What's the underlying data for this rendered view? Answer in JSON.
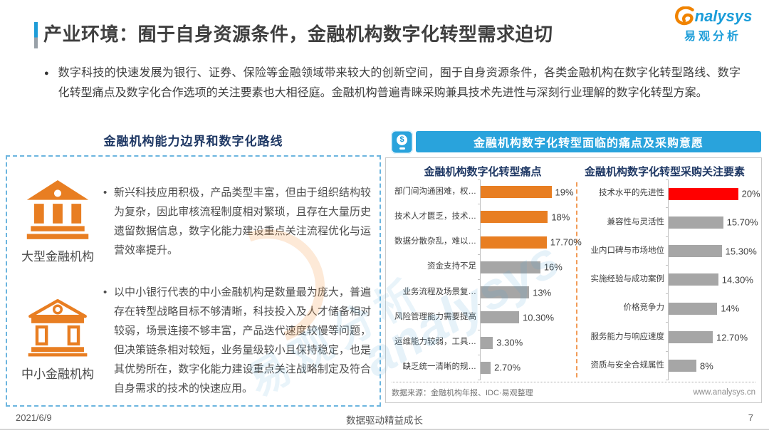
{
  "header": {
    "title": "产业环境：囿于自身资源条件，金融机构数字化转型需求迫切",
    "logo": {
      "brand_suffix": "nalysys",
      "brand_cn": "易观分析"
    }
  },
  "intro": {
    "bullet": "●",
    "text": "数字科技的快速发展为银行、证券、保险等金融领域带来较大的创新空间，囿于自身资源条件，各类金融机构在数字化转型路线、数字化转型痛点及数字化合作选项的关注要素也大相径庭。金融机构普遍青睐采购兼具技术先进性与深刻行业理解的数字化转型方案。",
    "text_color": "#404040"
  },
  "left_panel": {
    "title": "金融机构能力边界和数字化路线",
    "rows": [
      {
        "icon": "bank-large-icon",
        "label": "大型金融机构",
        "text": "新兴科技应用积极，产品类型丰富，但由于组织结构较为复杂，因此审核流程制度相对繁琐，且存在大量历史遗留数据信息，数字化能力建设重点关注流程优化与运营效率提升。"
      },
      {
        "icon": "bank-small-icon",
        "label": "中小金融机构",
        "text": "以中小银行代表的中小金融机构是数量最为庞大，普遍存在转型战略目标不够清晰，科技投入及人才储备相对较弱，场景连接不够丰富，产品迭代速度较慢等问题，但决策链条相对较短，业务量级较小且保持稳定，也是其优势所在，数字化能力建设重点关注战略制定及符合自身需求的技术的快速应用。"
      }
    ]
  },
  "right_panel": {
    "banner": "金融机构数字化转型面临的痛点及采购意愿",
    "banner_icon_symbol": "$",
    "source": "数据来源：金融机构年报、IDC·易观整理",
    "website": "www.analysys.cn"
  },
  "chart_data": [
    {
      "type": "bar",
      "orientation": "horizontal",
      "title": "金融机构数字化转型痛点",
      "categories": [
        "部门间沟通困难，权…",
        "技术人才匮乏，技术…",
        "数据分散杂乱，难以…",
        "资金支持不足",
        "业务流程及场景复…",
        "风险管理能力需要提高",
        "运维能力较弱，工具…",
        "缺乏统一清晰的规…"
      ],
      "values": [
        19,
        18,
        17.7,
        16,
        13,
        10.3,
        3.3,
        2.7
      ],
      "value_labels": [
        "19%",
        "18%",
        "17.70%",
        "16%",
        "13%",
        "10.30%",
        "3.30%",
        "2.70%"
      ],
      "bar_colors": [
        "#E87E22",
        "#E87E22",
        "#E87E22",
        "#A6A6A6",
        "#A6A6A6",
        "#A6A6A6",
        "#A6A6A6",
        "#A6A6A6"
      ],
      "xlim": [
        0,
        25
      ],
      "grid": false,
      "legend": "none"
    },
    {
      "type": "bar",
      "orientation": "horizontal",
      "title": "金融机构数字化转型采购关注要素",
      "categories": [
        "技术水平的先进性",
        "兼容性与灵活性",
        "业内口碑与市场地位",
        "实施经验与成功案例",
        "价格竞争力",
        "服务能力与响应速度",
        "资质与安全合规属性"
      ],
      "values": [
        20,
        15.7,
        15.3,
        14.3,
        14,
        12.7,
        8
      ],
      "value_labels": [
        "20%",
        "15.70%",
        "15.30%",
        "14.30%",
        "14%",
        "12.70%",
        "8%"
      ],
      "bar_colors": [
        "#FF0000",
        "#A6A6A6",
        "#A6A6A6",
        "#A6A6A6",
        "#A6A6A6",
        "#A6A6A6",
        "#A6A6A6"
      ],
      "xlim": [
        0,
        25
      ],
      "grid": false,
      "legend": "none"
    }
  ],
  "watermark": {
    "text_en": "analysys",
    "text_cn": "易观分析"
  },
  "footer": {
    "date": "2021/6/9",
    "slogan": "数据驱动精益成长",
    "page": "7"
  },
  "colors": {
    "banner_blue": "#29A3DC",
    "orange": "#E87E22",
    "gray_bar": "#A6A6A6",
    "red_bar": "#FF0000",
    "navy_heading": "#1F3864",
    "panel_border_blue": "#6CB5DF",
    "logo_blue": "#1B9DD9",
    "logo_orange": "#F08300"
  }
}
